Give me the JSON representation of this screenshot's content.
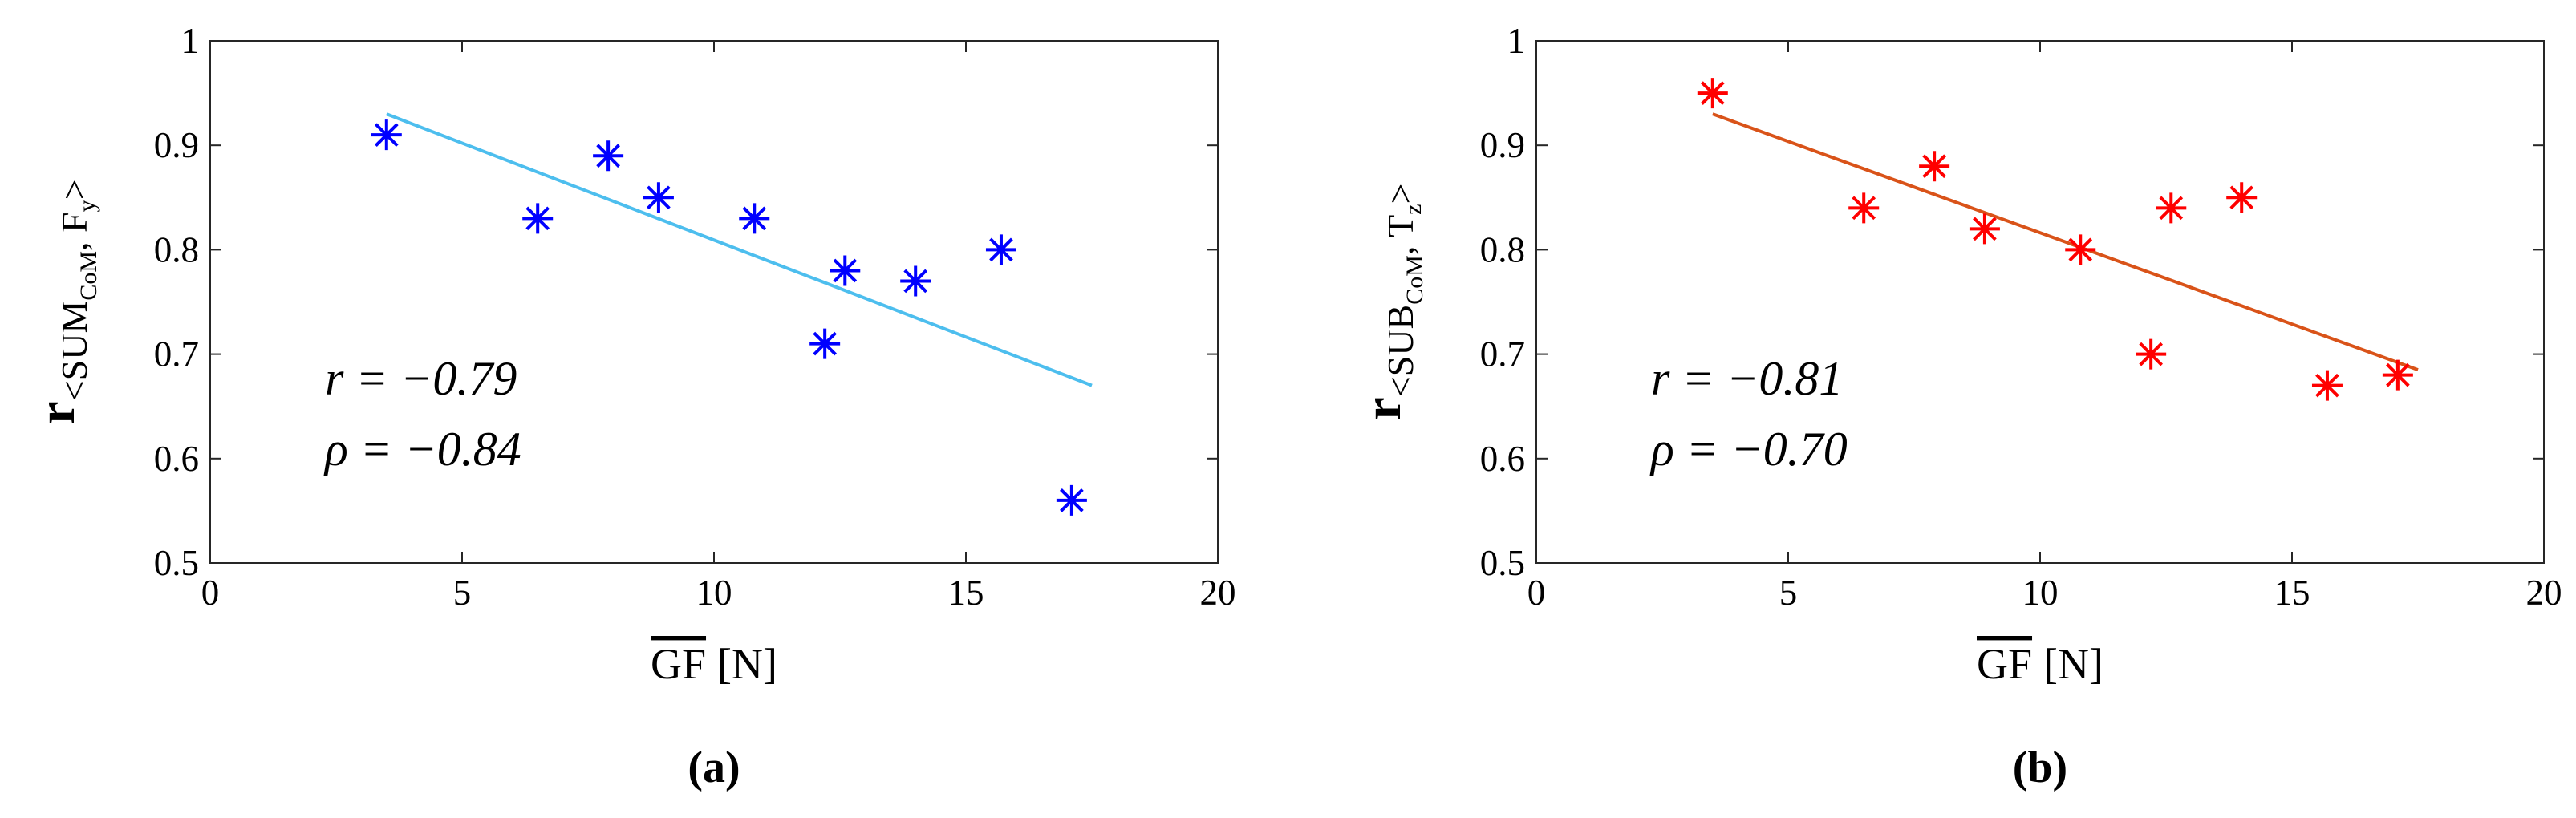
{
  "chart_data": [
    {
      "type": "scatter",
      "panel_label": "(a)",
      "ylabel": [
        "r",
        "<SUM",
        "CoM",
        ", F",
        "y",
        ">"
      ],
      "xlabel": [
        "GF",
        "[N]"
      ],
      "annotations": [
        "r = −0.79",
        "ρ = −0.84"
      ],
      "xlim": [
        0,
        20
      ],
      "xticks": [
        0,
        5,
        10,
        15,
        20
      ],
      "ylim": [
        0.5,
        1
      ],
      "yticks": [
        0.5,
        0.6,
        0.7,
        0.8,
        0.9,
        1
      ],
      "series": [
        {
          "color": "#0000ff",
          "x": [
            3.5,
            6.5,
            7.9,
            8.9,
            10.8,
            12.2,
            12.6,
            14.0,
            15.7,
            17.1
          ],
          "values": [
            0.91,
            0.83,
            0.89,
            0.85,
            0.83,
            0.71,
            0.78,
            0.77,
            0.8,
            0.56
          ]
        }
      ],
      "fit": {
        "color": "#4dbeee",
        "x": [
          3.5,
          17.5
        ],
        "values": [
          0.93,
          0.67
        ]
      }
    },
    {
      "type": "scatter",
      "panel_label": "(b)",
      "ylabel": [
        "r",
        "<SUB",
        "CoM",
        ", T",
        "z",
        ">"
      ],
      "xlabel": [
        "GF",
        "[N]"
      ],
      "annotations": [
        "r = −0.81",
        "ρ = −0.70"
      ],
      "xlim": [
        0,
        20
      ],
      "xticks": [
        0,
        5,
        10,
        15,
        20
      ],
      "ylim": [
        0.5,
        1
      ],
      "yticks": [
        0.5,
        0.6,
        0.7,
        0.8,
        0.9,
        1
      ],
      "series": [
        {
          "color": "#ff0000",
          "x": [
            3.5,
            6.5,
            7.9,
            8.9,
            10.8,
            12.2,
            12.6,
            14.0,
            15.7,
            17.1
          ],
          "values": [
            0.95,
            0.84,
            0.88,
            0.82,
            0.8,
            0.7,
            0.84,
            0.85,
            0.67,
            0.68
          ]
        }
      ],
      "fit": {
        "color": "#d95319",
        "x": [
          3.5,
          17.5
        ],
        "values": [
          0.93,
          0.685
        ]
      }
    }
  ]
}
